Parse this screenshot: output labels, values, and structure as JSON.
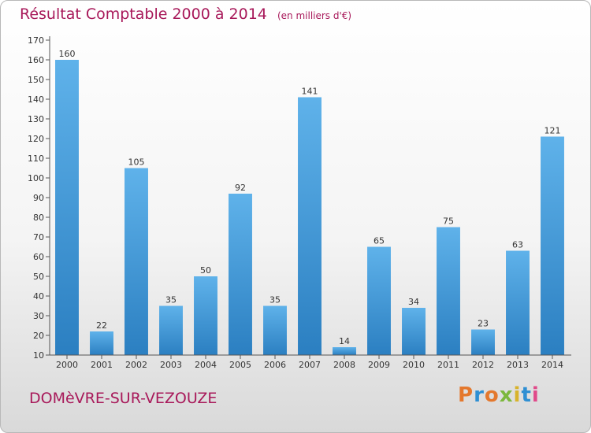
{
  "header": {
    "title": "Résultat Comptable 2000 à 2014",
    "unit_note": "(en milliers d'€)"
  },
  "footer": {
    "commune": "DOMèVRE-SUR-VEZOUZE",
    "logo_letters": [
      "P",
      "r",
      "o",
      "x",
      "i",
      "t",
      "i"
    ],
    "logo_colors": [
      "#e4782d",
      "#2e8fd3",
      "#e4782d",
      "#7cb83c",
      "#d8b32b",
      "#2e8fd3",
      "#e04a8a"
    ]
  },
  "colors": {
    "accent": "#a8195a",
    "bar_top": "#5fb2ea",
    "bar_bottom": "#2b7fc1"
  },
  "chart_data": {
    "type": "bar",
    "categories": [
      "2000",
      "2001",
      "2002",
      "2003",
      "2004",
      "2005",
      "2006",
      "2007",
      "2008",
      "2009",
      "2010",
      "2011",
      "2012",
      "2013",
      "2014"
    ],
    "values": [
      160,
      22,
      105,
      35,
      50,
      92,
      35,
      141,
      14,
      65,
      34,
      75,
      23,
      63,
      121
    ],
    "data_labels": [
      "160",
      "22",
      "105",
      "35",
      "50",
      "92",
      "35",
      "141",
      "14",
      "65",
      "34",
      "75",
      "23",
      "63",
      "121"
    ],
    "yticks": [
      10,
      20,
      30,
      40,
      50,
      60,
      70,
      80,
      90,
      100,
      110,
      120,
      130,
      140,
      150,
      160,
      170
    ],
    "ylim": [
      10,
      170
    ],
    "grid": false,
    "legend": "none"
  }
}
